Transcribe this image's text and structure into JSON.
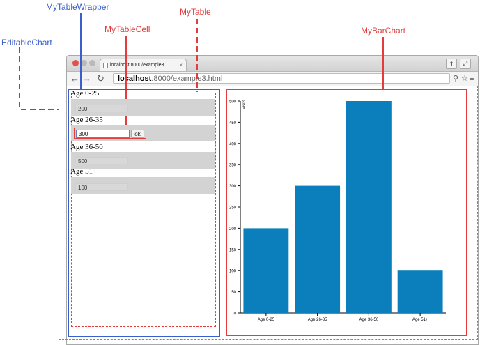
{
  "annotations": {
    "my_table_wrapper": "MyTableWrapper",
    "my_table": "MyTable",
    "my_table_cell": "MyTableCell",
    "editable_chart": "EditableChart",
    "my_bar_chart": "MyBarChart"
  },
  "browser": {
    "tab_title": "localhost:8000/example3",
    "url_host": "localhost",
    "url_rest": ":8000/example3.html"
  },
  "table": {
    "rows": [
      {
        "label": "Age 0-25",
        "value": "200"
      },
      {
        "label": "Age 26-35",
        "value": "300",
        "editing": true,
        "ok_label": "ok"
      },
      {
        "label": "Age 36-50",
        "value": "500"
      },
      {
        "label": "Age 51+",
        "value": "100"
      }
    ]
  },
  "colors": {
    "bar": "#0a7fbb",
    "wrapper_border": "#3a5fcd",
    "annotation_red": "#e23c3c"
  },
  "chart_data": {
    "type": "bar",
    "categories": [
      "Age 0-25",
      "Age 26-35",
      "Age 36-50",
      "Age 51+"
    ],
    "values": [
      200,
      300,
      500,
      100
    ],
    "ylabel": "Visits",
    "ylim": [
      0,
      500
    ],
    "yticks": [
      0,
      50,
      100,
      150,
      200,
      250,
      300,
      350,
      400,
      450,
      500
    ]
  }
}
